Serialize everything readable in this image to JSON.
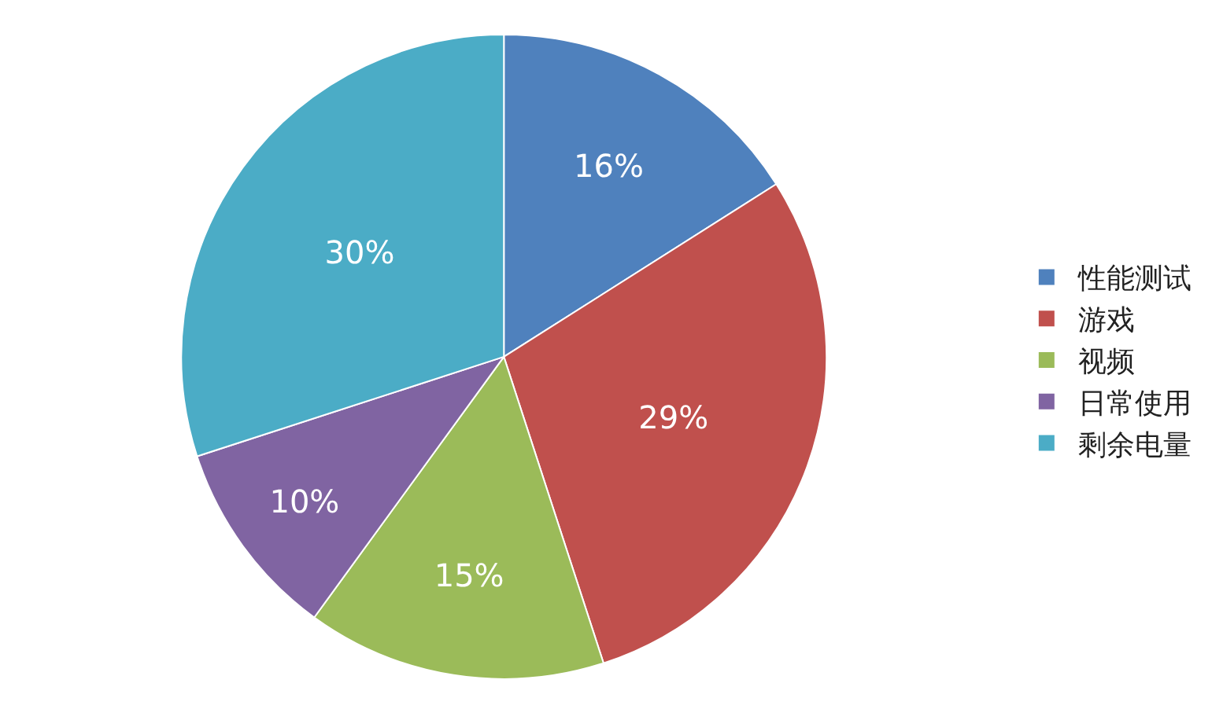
{
  "chart_data": {
    "type": "pie",
    "categories": [
      "性能测试",
      "游戏",
      "视频",
      "日常使用",
      "剩余电量"
    ],
    "values": [
      16,
      29,
      15,
      10,
      30
    ],
    "value_labels": [
      "16%",
      "29%",
      "15%",
      "10%",
      "30%"
    ],
    "colors": [
      "#4f81bd",
      "#c0504d",
      "#9bbb59",
      "#8064a2",
      "#4bacc6"
    ],
    "legend": "right"
  }
}
